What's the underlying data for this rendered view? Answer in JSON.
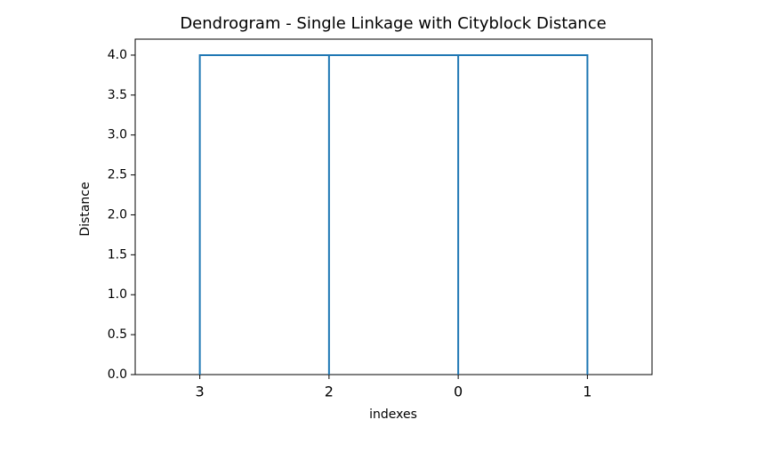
{
  "chart_data": {
    "type": "dendrogram",
    "title": "Dendrogram - Single Linkage with Cityblock Distance",
    "x_label": "indexes",
    "y_label": "Distance",
    "categories": [
      "3",
      "2",
      "0",
      "1"
    ],
    "links": [
      {
        "pair": [
          0,
          1
        ],
        "height": 4.0
      },
      {
        "pair": [
          4,
          2
        ],
        "height": 4.0
      },
      {
        "pair": [
          5,
          3
        ],
        "height": 4.0
      }
    ],
    "color": "#1f77b4",
    "ylim": [
      0,
      4.2
    ],
    "yticks": [
      {
        "value": 0,
        "label": "0.0"
      },
      0.5,
      {
        "value": 1,
        "label": "1.0"
      },
      1.5,
      {
        "value": 2,
        "label": "2.0"
      },
      2.5,
      {
        "value": 3,
        "label": "3.0"
      },
      3.5,
      {
        "value": 4,
        "label": "4.0"
      }
    ]
  }
}
